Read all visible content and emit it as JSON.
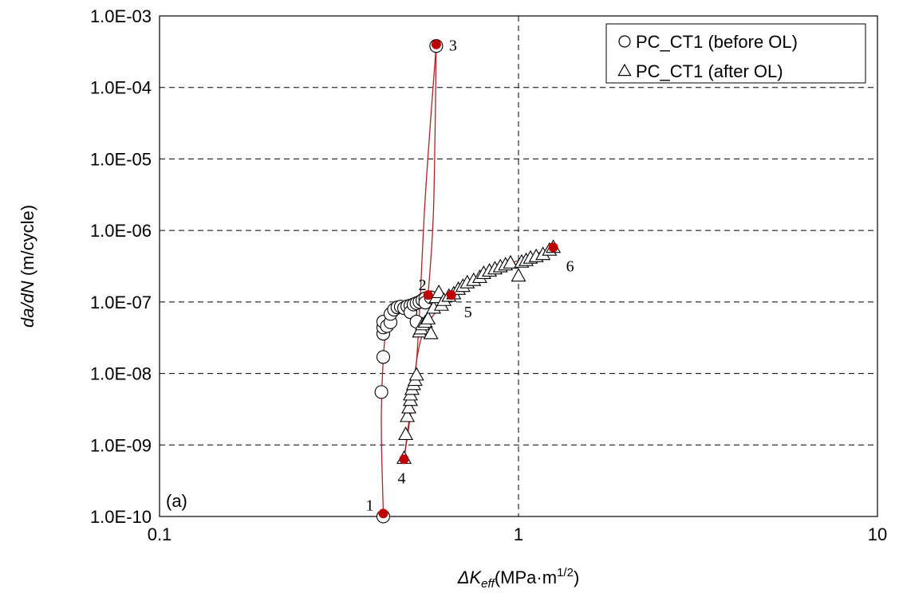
{
  "chart_data": {
    "type": "scatter",
    "x_scale": "log",
    "y_scale": "log",
    "xlim": [
      0.1,
      10
    ],
    "ylim": [
      1e-10,
      0.001
    ],
    "grid": true,
    "legend_position": "top-right",
    "x_ticks": [
      "0.1",
      "1",
      "10"
    ],
    "y_ticks": [
      "1.0E-10",
      "1.0E-09",
      "1.0E-08",
      "1.0E-07",
      "1.0E-06",
      "1.0E-05",
      "1.0E-04",
      "1.0E-03"
    ],
    "xlabel": {
      "main": "ΔK",
      "sub": "eff",
      "unit": "(MPa·m",
      "sup": "1/2",
      "close": ")"
    },
    "ylabel": {
      "main": "da/dN",
      "unit": " (m/cycle)"
    },
    "panel_label": "(a)",
    "series": [
      {
        "name": "PC_CT1 (before OL)",
        "marker": "circle",
        "points": [
          [
            0.42,
            1e-10
          ],
          [
            0.415,
            5.5e-09
          ],
          [
            0.42,
            1.7e-08
          ],
          [
            0.42,
            3.6e-08
          ],
          [
            0.42,
            4.4e-08
          ],
          [
            0.42,
            5.3e-08
          ],
          [
            0.43,
            4.6e-08
          ],
          [
            0.44,
            5.2e-08
          ],
          [
            0.44,
            6.8e-08
          ],
          [
            0.45,
            7.8e-08
          ],
          [
            0.46,
            8.4e-08
          ],
          [
            0.47,
            8.6e-08
          ],
          [
            0.48,
            8.2e-08
          ],
          [
            0.49,
            8.7e-08
          ],
          [
            0.5,
            8.9e-08
          ],
          [
            0.5,
            7.2e-08
          ],
          [
            0.51,
            9.2e-08
          ],
          [
            0.52,
            9.6e-08
          ],
          [
            0.53,
            1e-07
          ],
          [
            0.52,
            5.3e-08
          ],
          [
            0.54,
            1.06e-07
          ],
          [
            0.55,
            1.12e-07
          ],
          [
            0.55,
            9.8e-08
          ],
          [
            0.57,
            1.16e-07
          ],
          [
            0.59,
            0.00038
          ]
        ]
      },
      {
        "name": "PC_CT1 (after OL)",
        "marker": "triangle",
        "points": [
          [
            0.48,
            6.5e-10
          ],
          [
            0.485,
            1.4e-09
          ],
          [
            0.49,
            2.5e-09
          ],
          [
            0.495,
            3.3e-09
          ],
          [
            0.5,
            4.2e-09
          ],
          [
            0.5,
            5e-09
          ],
          [
            0.505,
            6e-09
          ],
          [
            0.51,
            7e-09
          ],
          [
            0.515,
            8e-09
          ],
          [
            0.52,
            9.5e-09
          ],
          [
            0.53,
            3.8e-08
          ],
          [
            0.535,
            4.2e-08
          ],
          [
            0.54,
            4.8e-08
          ],
          [
            0.55,
            5.2e-08
          ],
          [
            0.56,
            5.8e-08
          ],
          [
            0.57,
            3.6e-08
          ],
          [
            0.58,
            8.2e-08
          ],
          [
            0.59,
            1.15e-07
          ],
          [
            0.6,
            1.35e-07
          ],
          [
            0.61,
            9e-08
          ],
          [
            0.62,
            1.05e-07
          ],
          [
            0.64,
            1.2e-07
          ],
          [
            0.66,
            1.3e-07
          ],
          [
            0.68,
            1.5e-07
          ],
          [
            0.7,
            1.65e-07
          ],
          [
            0.72,
            1.85e-07
          ],
          [
            0.75,
            2e-07
          ],
          [
            0.78,
            2.2e-07
          ],
          [
            0.8,
            2.5e-07
          ],
          [
            0.83,
            2.7e-07
          ],
          [
            0.86,
            2.9e-07
          ],
          [
            0.89,
            3.1e-07
          ],
          [
            0.92,
            3.3e-07
          ],
          [
            0.95,
            3.5e-07
          ],
          [
            1.0,
            2.3e-07
          ],
          [
            1.02,
            3.6e-07
          ],
          [
            1.05,
            3.8e-07
          ],
          [
            1.08,
            4.1e-07
          ],
          [
            1.12,
            4.3e-07
          ],
          [
            1.17,
            4.6e-07
          ],
          [
            1.22,
            5.3e-07
          ],
          [
            1.25,
            5.8e-07
          ]
        ]
      }
    ],
    "fit_curves": [
      {
        "points": [
          [
            0.42,
            1.1e-10
          ],
          [
            0.415,
            3e-09
          ],
          [
            0.43,
            5e-08
          ],
          [
            0.47,
            8.8e-08
          ],
          [
            0.52,
            1.1e-07
          ],
          [
            0.56,
            1.25e-07
          ]
        ]
      },
      {
        "points": [
          [
            0.56,
            1.25e-07
          ],
          [
            0.58,
            2e-06
          ],
          [
            0.59,
            0.0004
          ]
        ]
      },
      {
        "points": [
          [
            0.59,
            0.0004
          ],
          [
            0.55,
            3e-06
          ],
          [
            0.52,
            1.5e-08
          ],
          [
            0.48,
            6.3e-10
          ]
        ]
      },
      {
        "points": [
          [
            0.48,
            6.3e-10
          ],
          [
            0.5,
            3e-09
          ],
          [
            0.54,
            3.5e-08
          ],
          [
            0.65,
            1.25e-07
          ]
        ]
      },
      {
        "points": [
          [
            0.65,
            1.25e-07
          ],
          [
            0.8,
            2.6e-07
          ],
          [
            1.0,
            3.8e-07
          ],
          [
            1.25,
            5.8e-07
          ]
        ]
      }
    ],
    "key_points": [
      {
        "label": "1",
        "x": 0.42,
        "y": 1.1e-10
      },
      {
        "label": "2",
        "x": 0.56,
        "y": 1.25e-07
      },
      {
        "label": "3",
        "x": 0.59,
        "y": 0.0004
      },
      {
        "label": "4",
        "x": 0.48,
        "y": 6.3e-10
      },
      {
        "label": "5",
        "x": 0.65,
        "y": 1.25e-07
      },
      {
        "label": "6",
        "x": 1.25,
        "y": 5.8e-07
      }
    ],
    "colors": {
      "curve": "#b22222",
      "key_point": "#c00000",
      "marker_edge": "#000000"
    }
  }
}
